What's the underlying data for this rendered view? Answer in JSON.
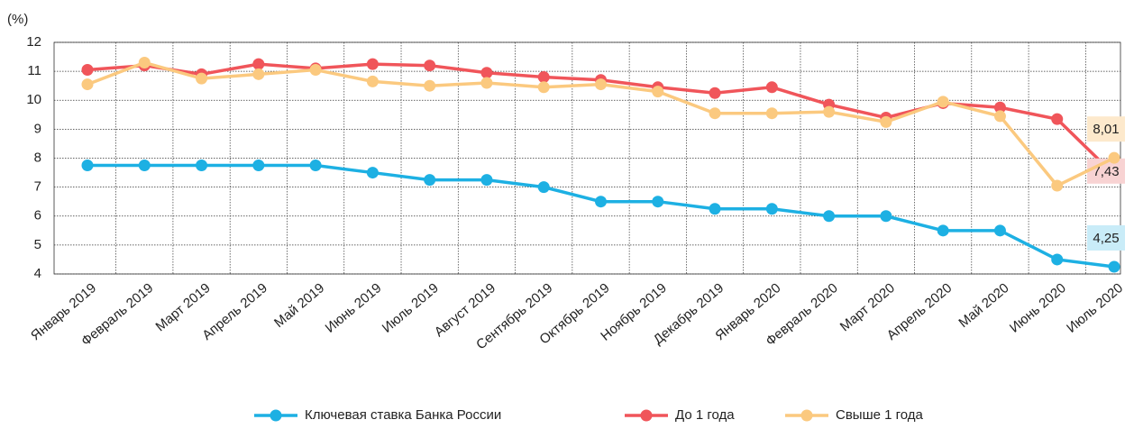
{
  "chart_data": {
    "type": "line",
    "y_unit": "(%)",
    "categories": [
      "Январь 2019",
      "Февраль 2019",
      "Март 2019",
      "Апрель 2019",
      "Май  2019",
      "Июнь 2019",
      "Июль 2019",
      "Август 2019",
      "Сентябрь 2019",
      "Октябрь 2019",
      "Ноябрь 2019",
      "Декабрь 2019",
      "Январь 2020",
      "Февраль 2020",
      "Март 2020",
      "Апрель 2020",
      "Май  2020",
      "Июнь 2020",
      "Июль 2020"
    ],
    "series": [
      {
        "name": "Ключевая ставка Банка России",
        "color": "#1db0e3",
        "label_bg": "#c9ecf8",
        "values": [
          7.75,
          7.75,
          7.75,
          7.75,
          7.75,
          7.5,
          7.25,
          7.25,
          7.0,
          6.5,
          6.5,
          6.25,
          6.25,
          6.0,
          6.0,
          5.5,
          5.5,
          4.5,
          4.25
        ],
        "value_labels": [
          null,
          null,
          null,
          null,
          null,
          null,
          null,
          null,
          null,
          null,
          null,
          null,
          null,
          null,
          null,
          null,
          null,
          null,
          "4,25"
        ]
      },
      {
        "name": "До 1 года",
        "color": "#f0555a",
        "label_bg": "#f8d3d3",
        "values": [
          11.05,
          11.2,
          10.9,
          11.25,
          11.1,
          11.25,
          11.2,
          10.95,
          10.8,
          10.7,
          10.45,
          10.25,
          10.45,
          9.85,
          9.4,
          9.9,
          9.75,
          9.35,
          7.43
        ],
        "value_labels": [
          null,
          null,
          null,
          null,
          null,
          null,
          null,
          null,
          null,
          null,
          null,
          null,
          null,
          null,
          null,
          null,
          null,
          null,
          "7,43"
        ]
      },
      {
        "name": "Свыше 1 года",
        "color": "#fbc97f",
        "label_bg": "#fde9cc",
        "values": [
          10.55,
          11.3,
          10.75,
          10.9,
          11.05,
          10.65,
          10.5,
          10.6,
          10.45,
          10.55,
          10.3,
          9.55,
          9.55,
          9.6,
          9.25,
          9.95,
          9.45,
          7.05,
          8.01
        ],
        "value_labels": [
          null,
          null,
          null,
          null,
          null,
          null,
          null,
          null,
          null,
          null,
          null,
          null,
          null,
          null,
          null,
          null,
          null,
          null,
          "8,01"
        ]
      }
    ],
    "ylim": [
      4,
      12
    ],
    "yticks": [
      4,
      5,
      6,
      7,
      8,
      9,
      10,
      11,
      12
    ],
    "grid": true,
    "legend": "bottom"
  }
}
